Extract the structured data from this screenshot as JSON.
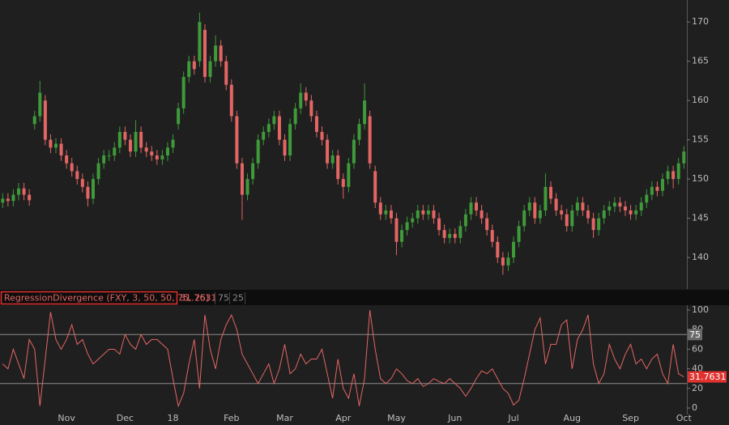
{
  "chart_data": [
    {
      "type": "candlestick",
      "categories": [
        null,
        null,
        null,
        null,
        null,
        null,
        null,
        null,
        null,
        null,
        null,
        null,
        "Nov",
        null,
        null,
        null,
        null,
        null,
        null,
        null,
        null,
        null,
        null,
        "Dec",
        null,
        null,
        null,
        null,
        null,
        null,
        null,
        null,
        "18",
        null,
        null,
        null,
        null,
        null,
        null,
        null,
        null,
        null,
        null,
        "Feb",
        null,
        null,
        null,
        null,
        null,
        null,
        null,
        null,
        null,
        "Mar",
        null,
        null,
        null,
        null,
        null,
        null,
        null,
        null,
        null,
        null,
        "Apr",
        null,
        null,
        null,
        null,
        null,
        null,
        null,
        null,
        null,
        "May",
        null,
        null,
        null,
        null,
        null,
        null,
        null,
        null,
        null,
        null,
        "Jun",
        null,
        null,
        null,
        null,
        null,
        null,
        null,
        null,
        null,
        null,
        "Jul",
        null,
        null,
        null,
        null,
        null,
        null,
        null,
        null,
        null,
        null,
        "Aug",
        null,
        null,
        null,
        null,
        null,
        null,
        null,
        null,
        null,
        null,
        "Sep",
        null,
        null,
        null,
        null,
        null,
        null,
        null,
        null,
        null,
        "Oct"
      ],
      "open": [
        147,
        147.5,
        147.2,
        148,
        148.8,
        148,
        157,
        158,
        160,
        155,
        154,
        154.5,
        153,
        152,
        151,
        150,
        149,
        147.5,
        150,
        152,
        153,
        153,
        154,
        156,
        155,
        153.5,
        156,
        154,
        153.5,
        153,
        152.5,
        153,
        154,
        157,
        159,
        163,
        165,
        165,
        169,
        163,
        165,
        167,
        165,
        162,
        158,
        152,
        148,
        150,
        152,
        155,
        156,
        157,
        158,
        155,
        153,
        157,
        159,
        161,
        160,
        158,
        156,
        155,
        152,
        153,
        150,
        149,
        152,
        155,
        157,
        158,
        151,
        147,
        145.5,
        146,
        145,
        142,
        143.5,
        144.5,
        145,
        146,
        145.5,
        146,
        145,
        143.5,
        142.5,
        143,
        142.5,
        144,
        145.5,
        147,
        146,
        145,
        143.5,
        142,
        140,
        139,
        140,
        142,
        144,
        146,
        147,
        145,
        146,
        149,
        147.5,
        146,
        145.5,
        144,
        146,
        147,
        146,
        145,
        143.5,
        145,
        146,
        146.5,
        147,
        146.5,
        146,
        145.5,
        146,
        147,
        148,
        149,
        148.5,
        150,
        151,
        150,
        152
      ],
      "high": [
        148.2,
        148.2,
        148.7,
        149.5,
        149.5,
        148.7,
        158.7,
        162.5,
        160.7,
        155.7,
        155.2,
        155.2,
        153.7,
        152.7,
        151.7,
        150.7,
        149.7,
        150.7,
        152.7,
        153.7,
        153.7,
        154.7,
        156.7,
        156.7,
        155.7,
        157.5,
        156.7,
        154.7,
        154.2,
        153.7,
        153.7,
        154.7,
        155.7,
        159.7,
        163.7,
        165.7,
        165.7,
        171.2,
        169.7,
        165.7,
        168.3,
        167.7,
        165.7,
        162.7,
        158.7,
        152.7,
        150.7,
        152.7,
        155.7,
        156.7,
        157.7,
        158.7,
        158.7,
        155.7,
        157.7,
        159.7,
        162.2,
        161.7,
        160.7,
        158.7,
        156.7,
        155.7,
        153.7,
        153.7,
        150.7,
        152.7,
        155.7,
        157.7,
        162.2,
        158.7,
        151.7,
        147.7,
        146.7,
        146.7,
        145.7,
        144.2,
        145.2,
        145.7,
        146.7,
        146.7,
        146.7,
        146.7,
        145.7,
        144.2,
        143.7,
        143.7,
        144.7,
        146.2,
        147.7,
        147.7,
        146.7,
        145.7,
        144.2,
        142.7,
        140.7,
        140.7,
        142.7,
        144.7,
        146.7,
        147.7,
        147.7,
        146.7,
        150.7,
        149.7,
        148.2,
        146.7,
        146.2,
        146.7,
        147.7,
        147.7,
        146.7,
        145.7,
        145.7,
        146.7,
        147.2,
        147.7,
        147.7,
        147.2,
        146.7,
        146.7,
        147.7,
        148.7,
        149.7,
        149.7,
        150.7,
        151.7,
        151.7,
        152.7,
        154.2
      ],
      "low": [
        146.3,
        146.5,
        146.5,
        147.3,
        147.3,
        146.6,
        156.3,
        157.3,
        154.3,
        153.3,
        153.3,
        152.3,
        151.3,
        150.3,
        149.3,
        148.3,
        146.5,
        146.8,
        149.3,
        151.3,
        152.3,
        152.3,
        153.3,
        154.3,
        152.8,
        152.8,
        153.3,
        152.8,
        152.3,
        151.8,
        151.8,
        152.3,
        153.3,
        156.3,
        158.3,
        162.3,
        163.3,
        164.3,
        162.3,
        162.3,
        164.3,
        164.3,
        161.3,
        157.3,
        151.3,
        144.8,
        147.3,
        149.3,
        151.3,
        154.3,
        155.3,
        156.3,
        154.3,
        152.3,
        152.3,
        156.3,
        158.3,
        159.3,
        157.3,
        155.3,
        154.3,
        151.3,
        151.3,
        149.3,
        147.5,
        148.3,
        151.3,
        154.3,
        156.3,
        151.3,
        146.3,
        144.8,
        144.8,
        144.3,
        140.3,
        141.3,
        142.8,
        143.8,
        144.3,
        144.8,
        144.8,
        144.3,
        142.8,
        141.8,
        141.8,
        141.8,
        141.8,
        143.3,
        144.8,
        145.3,
        144.3,
        142.8,
        141.3,
        139.3,
        137.8,
        138.3,
        139.3,
        141.3,
        143.3,
        145.3,
        144.3,
        144.3,
        145.3,
        146.8,
        145.3,
        144.8,
        143.3,
        143.3,
        145.3,
        145.3,
        144.3,
        142.5,
        142.8,
        144.3,
        145.3,
        145.8,
        145.8,
        145.3,
        144.8,
        144.8,
        145.3,
        146.3,
        147.3,
        147.8,
        147.8,
        149.3,
        148.8,
        149.3,
        151.3
      ],
      "close": [
        147.5,
        147.2,
        148,
        148.8,
        148,
        147.3,
        158,
        161,
        155,
        154,
        154.5,
        153,
        152,
        151,
        150,
        149,
        147.5,
        150,
        152,
        153,
        153,
        154,
        156,
        155,
        153.5,
        156,
        154,
        153.5,
        153,
        152.5,
        153,
        154,
        155,
        159,
        163,
        165,
        164,
        170,
        163,
        165,
        167,
        165,
        162,
        158,
        152,
        148,
        150,
        152,
        155,
        156,
        157,
        158,
        155,
        153,
        157,
        159,
        161,
        160,
        158,
        156,
        155,
        152,
        153,
        150,
        149,
        152,
        155,
        157,
        160,
        152,
        147,
        145.5,
        146,
        145,
        142,
        143.5,
        144.5,
        145,
        146,
        145.5,
        146,
        145,
        143.5,
        142.5,
        143,
        142.5,
        144,
        145.5,
        147,
        146,
        145,
        143.5,
        142,
        140,
        139,
        140,
        142,
        144,
        146,
        147,
        145,
        146,
        149,
        147.5,
        146,
        145.5,
        144,
        146,
        147,
        146,
        145,
        143.5,
        145,
        146,
        146.5,
        147,
        146.5,
        146,
        145.5,
        146,
        147,
        148,
        149,
        148.5,
        150,
        151,
        150,
        152,
        153.5
      ],
      "up_color": "#3f9a3a",
      "down_color": "#e36664",
      "ylim": [
        136.2,
        172.8
      ],
      "yticks": [
        140,
        145,
        150,
        155,
        160,
        165,
        170
      ]
    },
    {
      "type": "line",
      "title": "RegressionDivergence (FXY, 3, 50, 50, 75, 25)",
      "values": [
        45,
        40,
        60,
        45,
        30,
        70,
        60,
        2,
        50,
        98,
        70,
        60,
        70,
        85,
        65,
        70,
        55,
        45,
        50,
        55,
        60,
        60,
        55,
        75,
        65,
        60,
        75,
        65,
        70,
        70,
        65,
        60,
        30,
        2,
        15,
        45,
        70,
        20,
        95,
        60,
        40,
        70,
        85,
        95,
        80,
        55,
        45,
        35,
        25,
        35,
        45,
        25,
        40,
        65,
        35,
        40,
        55,
        45,
        50,
        50,
        60,
        35,
        10,
        50,
        20,
        10,
        35,
        2,
        30,
        100,
        60,
        30,
        25,
        30,
        40,
        35,
        28,
        25,
        30,
        22,
        25,
        30,
        27,
        25,
        30,
        25,
        20,
        12,
        20,
        30,
        38,
        35,
        40,
        30,
        20,
        15,
        3,
        8,
        30,
        55,
        80,
        92,
        45,
        65,
        65,
        85,
        90,
        40,
        70,
        80,
        95,
        45,
        25,
        35,
        65,
        50,
        40,
        55,
        65,
        45,
        50,
        40,
        50,
        55,
        35,
        25,
        65,
        35,
        31.7631
      ],
      "color": "#e36664",
      "levels": [
        75,
        25
      ],
      "ylim": [
        -6.6,
        105
      ],
      "yticks": [
        0,
        20,
        40,
        60,
        80,
        100
      ]
    }
  ]
}
